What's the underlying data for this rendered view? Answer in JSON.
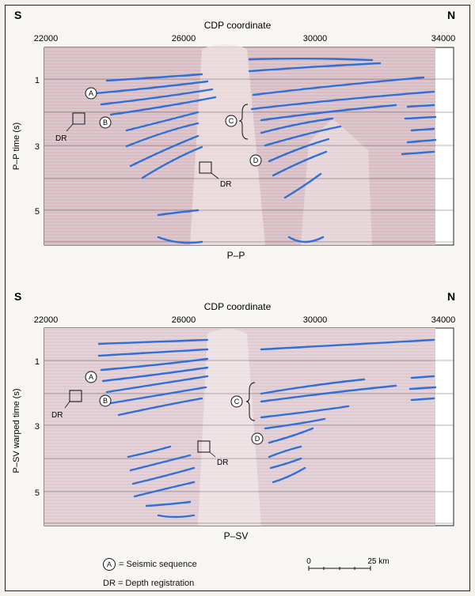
{
  "panels": [
    {
      "id": "pp",
      "direction_left": "S",
      "direction_right": "N",
      "x_axis_title": "CDP coordinate",
      "x_ticks": [
        "22000",
        "26000",
        "30000",
        "34000"
      ],
      "y_axis_title": "P–P time (s)",
      "y_ticks": [
        "1",
        "3",
        "5"
      ],
      "bottom_label": "P–P",
      "markers": [
        "A",
        "B",
        "C",
        "D"
      ],
      "dr_label": "DR"
    },
    {
      "id": "psv",
      "direction_left": "S",
      "direction_right": "N",
      "x_axis_title": "CDP coordinate",
      "x_ticks": [
        "22000",
        "26000",
        "30000",
        "34000"
      ],
      "y_axis_title": "P–SV warped time (s)",
      "y_ticks": [
        "1",
        "3",
        "5"
      ],
      "bottom_label": "P–SV",
      "markers": [
        "A",
        "B",
        "C",
        "D"
      ],
      "dr_label": "DR"
    }
  ],
  "legend": {
    "symbol": "A",
    "sequence_text": "= Seismic sequence",
    "dr_text": "DR = Depth registration"
  },
  "scale_bar": {
    "start": "0",
    "end": "25 km"
  },
  "colors": {
    "horizon": "#2f6fd6",
    "seismic_red": "#b84b4b",
    "seismic_blue": "#6d6fa8"
  }
}
